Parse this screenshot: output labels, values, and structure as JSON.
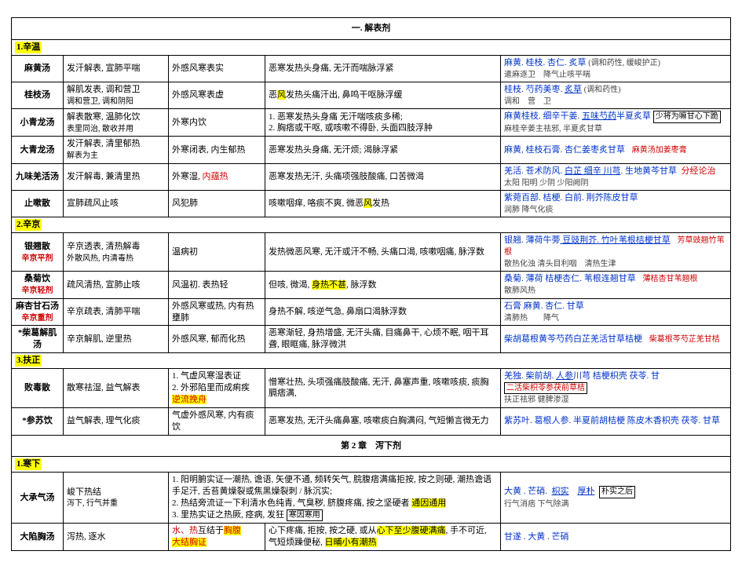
{
  "chapter1": "一. 解表剂",
  "chapter2": "第 2 章　泻下剂",
  "sec1": "1.辛温",
  "sec2": "2.辛京",
  "sec3": "3.扶正",
  "sec4": "1.寒下",
  "r1": {
    "name": "麻黄汤",
    "func": "发汗解表, 宣肺平喘",
    "ind": "外感风寒表实",
    "sym": "恶寒发热头身痛, 无汗而喘脉浮紧",
    "rx_main": "麻黄. 桂枝. 杏仁. 炙草",
    "rx_note": "(调和药性, 缓峻护正)",
    "rx_sub": "遣麻逐卫　降气止咳平喘"
  },
  "r2": {
    "name": "桂枝汤",
    "func": "解肌发表, 调和营卫",
    "func_sub": "调和营卫, 调和阴阳",
    "ind": "外感风寒表虚",
    "sym_a": "恶",
    "sym_b": "风",
    "sym_c": "发热头痛汗出, 鼻鸣干呕脉浮缓",
    "rx_main": "桂枝. 芍药美枣. ",
    "rx_cg": "炙草",
    "rx_note": "(调和药性)",
    "rx_sub": "调和　营　卫"
  },
  "r3": {
    "name": "小青龙汤",
    "func": "解表散寒, 温肺化饮",
    "func_sub": "表里同治, 散收并用",
    "ind": "外寒内饮",
    "sym": "1. 恶寒发热头身痛  无汗喘咳痰多稀;\n2. 胸痞或干呕, 或咳嗽不得卧, 头面四肢浮肿",
    "rx_main": "麻黄桂枝. 细辛干姜. ",
    "rx_u": "五味芍药",
    "rx_tail": "半夏炙草",
    "rx_box": "少将为嘛甘心下跪",
    "rx_sub": "麻桂辛姜主祛邪, 半夏炙甘草"
  },
  "r4": {
    "name": "大青龙汤",
    "func": "发汗解表, 清里郁热",
    "func_sub": "解表为主",
    "ind": "外寒闭表, 内生郁热",
    "sym": "恶寒发热头身痛, 无汗烦; 渴脉浮紧",
    "rx_main": "麻黄, 桂枝石膏. 杏仁姜枣炙甘草",
    "rx_note": "麻黄汤加姜枣膏"
  },
  "r5": {
    "name": "九味羌活汤",
    "func": "发汗解毒, 兼清里热",
    "ind_a": "外寒湿, ",
    "ind_b": "内蕴热",
    "sym": "恶寒发热无汗, 头痛项强肢酸痛, 口苦微渴",
    "rx_main": "羌活. 苍术防风. ",
    "rx_u": "白芷  细辛  川芎",
    "rx_tail": ". 生地黄芩甘草",
    "rx_flag": "分经论治",
    "rx_sub": "太阳           阳明  少阴  少阳阙阴"
  },
  "r6": {
    "name": "止嗽散",
    "func": "宣肺疏风止咳",
    "ind": "风犯肺",
    "sym_a": "咳嗽咽痒, 咯痰不爽, 微恶",
    "sym_b": "风",
    "sym_c": "发热",
    "rx_main": "紫菀百部. 桔梗. 白前. 荆芥陈皮甘草",
    "rx_sub": "润肺            降气化痰"
  },
  "r7": {
    "name": "银翘散",
    "name_sub": "辛京平剂",
    "func": "辛京透表, 清热解毒",
    "func_sub": "外散风热, 内清毒热",
    "ind": "温病初",
    "sym": "发热微恶风寒, 无汗或汗不畅, 头痛口渴, 咳嗽咽痛, 脉浮数",
    "rx_main": "银翘. 薄荷牛蒡",
    "rx_sp": "  豆豉荆芥",
    "rx_tail2": ". 竹叶苇根桔梗甘草",
    "rx_note": "芳草豉翘竹苇根",
    "rx_sub": "散热化浊           清头目利咽　清热生津"
  },
  "r8": {
    "name": "桑菊饮",
    "name_sub": "辛京轻剂",
    "func": "疏风清热, 宣肺止咳",
    "ind": "风温初. 表热轻",
    "sym_a": "但咳, 微渴, ",
    "sym_b": "身热不甚",
    "sym_c": ", 脉浮数",
    "rx_main": "桑菊. 薄荷  桔梗杏仁. 苇根连翘甘草",
    "rx_note": "薄桔杏甘苇翘根",
    "rx_sub": "散肺风热"
  },
  "r9": {
    "name": "麻杏甘石汤",
    "name_sub": "辛京重剂",
    "func": "辛京疏表, 清肺平喘",
    "ind": "外感风寒或热, 内有热壅肺",
    "sym": "身热不解, 咳逆气急, 鼻扇口渴脉浮数",
    "rx_main": "石膏  麻黄. 杏仁. 甘草",
    "rx_sub": "清肺热　　降气"
  },
  "r10": {
    "name": "*柴葛解肌汤",
    "func": "辛京解肌, 逆里热",
    "ind": "外感风寒, 郁而化热",
    "sym": "恶寒渐轻, 身热增盛, 无汗头痛, 目痛鼻干, 心烦不眠, 咽干耳聋, 眼眶痛, 脉浮微洪",
    "rx_main": "柴胡葛根黄芩芍药白芷羌活甘草桔梗",
    "rx_note": "柴葛根芩芍芷羌甘桔"
  },
  "r11": {
    "name": "败毒散",
    "func": "散寒祛湿, 益气解表",
    "ind_a": "1. 气虚风寒湿表证",
    "ind_b": "2. 外邪陷里而成痢疾",
    "ind_c": "逆流挽舟",
    "sym": "憎寒壮热, 头项强痛肢酸痛, 无汗, 鼻塞声重, 咳嗽咳痰, 痰胸膈痞满,",
    "rx_main": "羌独. 柴前胡. ",
    "rx_u": "人参",
    "rx_tail": "川芎  桔梗枳壳  茯苓. 甘",
    "rx_box": "二活柴枳苓参茯前草桔",
    "rx_sub": "扶正祛邪                     健脾渗湿"
  },
  "r12": {
    "name": "*参苏饮",
    "func": "益气解表, 理气化痰",
    "ind": "气虚外感风寒, 内有痰饮",
    "sym": "恶寒发热, 无汗头痛鼻塞, 咳嗽痰白胸满闷, 气短懒言微无力",
    "rx_main": "紫苏叶. 葛根人参. 半夏前胡桔梗  陈皮木香枳壳  茯苓. 甘草"
  },
  "r13": {
    "name": "大承气汤",
    "func": "峻下热结",
    "func_sub": "泻下, 行气并重",
    "ind_a": "1. 阳明腑实证一潮热, 谵语, 矢便不通, 频转矢气, 脘腹痞满痛拒按, 按之则硬, 潮热谵语手足汗, 舌苔黄燥裂或焦黑燥裂刺 / 脉沉实;",
    "ind_b": "2. 热结旁流证一下利清水色纯青, 气臭秽, 脐腹疼痛, 按之坚硬者 ",
    "ind_hl": "通因通用",
    "ind_c": "3. 里热实证之热厥, 痉病, 发狂",
    "ind_box": "寒因寒用",
    "rx_main": "大黄 . 芒硝.",
    "rx_sp1": "枳实",
    "rx_sp2": "厚朴",
    "rx_box": "朴实之后",
    "rx_sub": "行气消痞  下气除满"
  },
  "r14": {
    "name": "大陷胸汤",
    "func": "泻热, 逐水",
    "ind_a": "水、热",
    "ind_b": "互结于",
    "ind_c": "胸腹",
    "ind_d": "大结胸证",
    "sym_a": "心下疼痛, 拒按, 按之硬, 或从",
    "sym_b": "心下至少腹硬满痛",
    "sym_c": ", 手不可近, 气短烦躁便秘, ",
    "sym_d": "日晡小有潮热",
    "rx_main": "甘遂 . 大黄 . 芒硝"
  }
}
